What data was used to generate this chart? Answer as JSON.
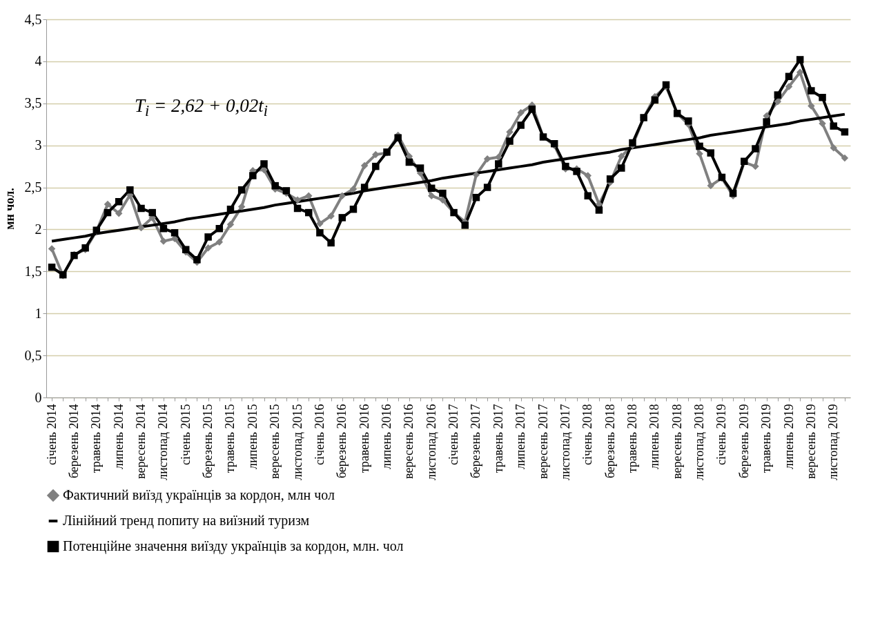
{
  "chart_data": {
    "type": "line",
    "categories": [
      "січень 2014",
      null,
      "березень 2014",
      null,
      "травень 2014",
      null,
      "липень 2014",
      null,
      "вересень 2014",
      null,
      "листопад 2014",
      null,
      "січень 2015",
      null,
      "березень 2015",
      null,
      "травень 2015",
      null,
      "липень 2015",
      null,
      "вересень 2015",
      null,
      "листопад 2015",
      null,
      "січень 2016",
      null,
      "березень 2016",
      null,
      "травень 2016",
      null,
      "липень 2016",
      null,
      "вересень 2016",
      null,
      "листопад 2016",
      null,
      "січень 2017",
      null,
      "березень 2017",
      null,
      "травень 2017",
      null,
      "липень 2017",
      null,
      "вересень 2017",
      null,
      "листопад 2017",
      null,
      "січень 2018",
      null,
      "березень 2018",
      null,
      "травень 2018",
      null,
      "липень 2018",
      null,
      "вересень 2018",
      null,
      "листопад 2018",
      null,
      "січень 2019",
      null,
      "березень 2019",
      null,
      "травень 2019",
      null,
      "липень 2019",
      null,
      "вересень 2019",
      null,
      "листопад 2019",
      null
    ],
    "series": [
      {
        "name": "Фактичний виїзд українців за кордон, млн чол",
        "color": "#808080",
        "marker": "diamond",
        "values": [
          1.77,
          1.45,
          1.7,
          1.76,
          1.98,
          2.3,
          2.19,
          2.41,
          2.02,
          2.14,
          1.86,
          1.89,
          1.73,
          1.61,
          1.78,
          1.85,
          2.06,
          2.27,
          2.7,
          2.71,
          2.48,
          2.43,
          2.35,
          2.4,
          2.07,
          2.16,
          2.4,
          2.48,
          2.76,
          2.89,
          2.91,
          3.12,
          2.87,
          2.67,
          2.4,
          2.35,
          2.2,
          2.09,
          2.65,
          2.84,
          2.86,
          3.16,
          3.39,
          3.48,
          3.1,
          3.0,
          2.72,
          2.72,
          2.64,
          2.3,
          2.56,
          2.87,
          3.0,
          3.33,
          3.58,
          3.7,
          3.38,
          3.25,
          2.9,
          2.52,
          2.61,
          2.4,
          2.8,
          2.75,
          3.35,
          3.52,
          3.7,
          3.87,
          3.47,
          3.26,
          2.97,
          2.85
        ]
      },
      {
        "name": "Лінійний тренд попиту на виїзний туризм",
        "color": "#000000",
        "marker": "none",
        "values": [
          1.86,
          1.88,
          1.9,
          1.92,
          1.95,
          1.97,
          1.99,
          2.01,
          2.03,
          2.05,
          2.07,
          2.09,
          2.12,
          2.14,
          2.16,
          2.18,
          2.2,
          2.22,
          2.24,
          2.26,
          2.29,
          2.31,
          2.33,
          2.35,
          2.37,
          2.39,
          2.41,
          2.43,
          2.46,
          2.48,
          2.5,
          2.52,
          2.54,
          2.56,
          2.58,
          2.61,
          2.63,
          2.65,
          2.67,
          2.69,
          2.71,
          2.73,
          2.75,
          2.77,
          2.8,
          2.82,
          2.84,
          2.86,
          2.88,
          2.9,
          2.92,
          2.95,
          2.97,
          2.99,
          3.01,
          3.03,
          3.05,
          3.07,
          3.09,
          3.12,
          3.14,
          3.16,
          3.18,
          3.2,
          3.22,
          3.24,
          3.26,
          3.29,
          3.31,
          3.33,
          3.35,
          3.37
        ]
      },
      {
        "name": "Потенційне значення виїзду українців за кордон, млн. чол",
        "color": "#000000",
        "marker": "square",
        "values": [
          1.55,
          1.46,
          1.69,
          1.78,
          1.99,
          2.2,
          2.33,
          2.47,
          2.25,
          2.2,
          2.01,
          1.96,
          1.76,
          1.64,
          1.91,
          2.01,
          2.24,
          2.47,
          2.64,
          2.78,
          2.52,
          2.46,
          2.25,
          2.2,
          1.96,
          1.84,
          2.14,
          2.24,
          2.5,
          2.75,
          2.92,
          3.09,
          2.8,
          2.73,
          2.49,
          2.43,
          2.2,
          2.05,
          2.38,
          2.5,
          2.78,
          3.05,
          3.24,
          3.43,
          3.1,
          3.02,
          2.75,
          2.69,
          2.4,
          2.23,
          2.6,
          2.73,
          3.03,
          3.33,
          3.54,
          3.72,
          3.38,
          3.29,
          2.99,
          2.91,
          2.62,
          2.43,
          2.81,
          2.96,
          3.28,
          3.6,
          3.82,
          4.02,
          3.65,
          3.57,
          3.23,
          3.16
        ]
      }
    ],
    "ylabel": "мн чол.",
    "ylim": [
      0,
      4.5
    ],
    "yticks": [
      0,
      {
        "value": 0.5,
        "label": "0,5"
      },
      1,
      {
        "value": 1.5,
        "label": "1,5"
      },
      2,
      {
        "value": 2.5,
        "label": "2,5"
      },
      3,
      {
        "value": 3.5,
        "label": "3,5"
      },
      4,
      {
        "value": 4.5,
        "label": "4,5"
      }
    ],
    "grid": "y",
    "legend": "bottom",
    "annotations": [
      "T$_{i}$ = 2,62 + 0,02t$_{i}$"
    ]
  }
}
